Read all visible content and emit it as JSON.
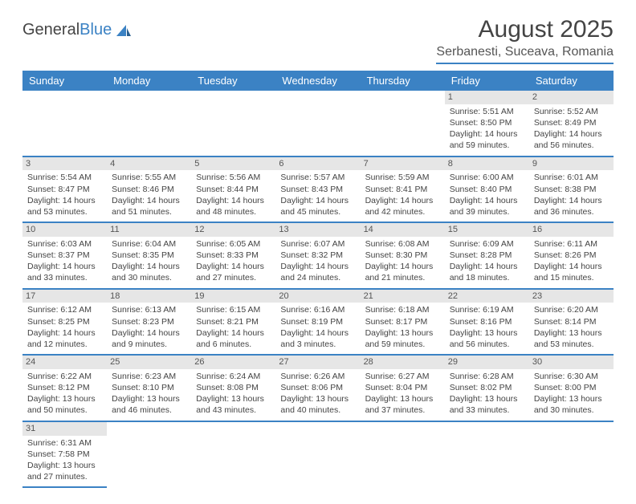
{
  "logo": {
    "text1": "General",
    "text2": "Blue"
  },
  "title": "August 2025",
  "location": "Serbanesti, Suceava, Romania",
  "header_bg": "#3b82c4",
  "days": [
    "Sunday",
    "Monday",
    "Tuesday",
    "Wednesday",
    "Thursday",
    "Friday",
    "Saturday"
  ],
  "weeks": [
    [
      null,
      null,
      null,
      null,
      null,
      {
        "n": "1",
        "sr": "Sunrise: 5:51 AM",
        "ss": "Sunset: 8:50 PM",
        "d1": "Daylight: 14 hours",
        "d2": "and 59 minutes."
      },
      {
        "n": "2",
        "sr": "Sunrise: 5:52 AM",
        "ss": "Sunset: 8:49 PM",
        "d1": "Daylight: 14 hours",
        "d2": "and 56 minutes."
      }
    ],
    [
      {
        "n": "3",
        "sr": "Sunrise: 5:54 AM",
        "ss": "Sunset: 8:47 PM",
        "d1": "Daylight: 14 hours",
        "d2": "and 53 minutes."
      },
      {
        "n": "4",
        "sr": "Sunrise: 5:55 AM",
        "ss": "Sunset: 8:46 PM",
        "d1": "Daylight: 14 hours",
        "d2": "and 51 minutes."
      },
      {
        "n": "5",
        "sr": "Sunrise: 5:56 AM",
        "ss": "Sunset: 8:44 PM",
        "d1": "Daylight: 14 hours",
        "d2": "and 48 minutes."
      },
      {
        "n": "6",
        "sr": "Sunrise: 5:57 AM",
        "ss": "Sunset: 8:43 PM",
        "d1": "Daylight: 14 hours",
        "d2": "and 45 minutes."
      },
      {
        "n": "7",
        "sr": "Sunrise: 5:59 AM",
        "ss": "Sunset: 8:41 PM",
        "d1": "Daylight: 14 hours",
        "d2": "and 42 minutes."
      },
      {
        "n": "8",
        "sr": "Sunrise: 6:00 AM",
        "ss": "Sunset: 8:40 PM",
        "d1": "Daylight: 14 hours",
        "d2": "and 39 minutes."
      },
      {
        "n": "9",
        "sr": "Sunrise: 6:01 AM",
        "ss": "Sunset: 8:38 PM",
        "d1": "Daylight: 14 hours",
        "d2": "and 36 minutes."
      }
    ],
    [
      {
        "n": "10",
        "sr": "Sunrise: 6:03 AM",
        "ss": "Sunset: 8:37 PM",
        "d1": "Daylight: 14 hours",
        "d2": "and 33 minutes."
      },
      {
        "n": "11",
        "sr": "Sunrise: 6:04 AM",
        "ss": "Sunset: 8:35 PM",
        "d1": "Daylight: 14 hours",
        "d2": "and 30 minutes."
      },
      {
        "n": "12",
        "sr": "Sunrise: 6:05 AM",
        "ss": "Sunset: 8:33 PM",
        "d1": "Daylight: 14 hours",
        "d2": "and 27 minutes."
      },
      {
        "n": "13",
        "sr": "Sunrise: 6:07 AM",
        "ss": "Sunset: 8:32 PM",
        "d1": "Daylight: 14 hours",
        "d2": "and 24 minutes."
      },
      {
        "n": "14",
        "sr": "Sunrise: 6:08 AM",
        "ss": "Sunset: 8:30 PM",
        "d1": "Daylight: 14 hours",
        "d2": "and 21 minutes."
      },
      {
        "n": "15",
        "sr": "Sunrise: 6:09 AM",
        "ss": "Sunset: 8:28 PM",
        "d1": "Daylight: 14 hours",
        "d2": "and 18 minutes."
      },
      {
        "n": "16",
        "sr": "Sunrise: 6:11 AM",
        "ss": "Sunset: 8:26 PM",
        "d1": "Daylight: 14 hours",
        "d2": "and 15 minutes."
      }
    ],
    [
      {
        "n": "17",
        "sr": "Sunrise: 6:12 AM",
        "ss": "Sunset: 8:25 PM",
        "d1": "Daylight: 14 hours",
        "d2": "and 12 minutes."
      },
      {
        "n": "18",
        "sr": "Sunrise: 6:13 AM",
        "ss": "Sunset: 8:23 PM",
        "d1": "Daylight: 14 hours",
        "d2": "and 9 minutes."
      },
      {
        "n": "19",
        "sr": "Sunrise: 6:15 AM",
        "ss": "Sunset: 8:21 PM",
        "d1": "Daylight: 14 hours",
        "d2": "and 6 minutes."
      },
      {
        "n": "20",
        "sr": "Sunrise: 6:16 AM",
        "ss": "Sunset: 8:19 PM",
        "d1": "Daylight: 14 hours",
        "d2": "and 3 minutes."
      },
      {
        "n": "21",
        "sr": "Sunrise: 6:18 AM",
        "ss": "Sunset: 8:17 PM",
        "d1": "Daylight: 13 hours",
        "d2": "and 59 minutes."
      },
      {
        "n": "22",
        "sr": "Sunrise: 6:19 AM",
        "ss": "Sunset: 8:16 PM",
        "d1": "Daylight: 13 hours",
        "d2": "and 56 minutes."
      },
      {
        "n": "23",
        "sr": "Sunrise: 6:20 AM",
        "ss": "Sunset: 8:14 PM",
        "d1": "Daylight: 13 hours",
        "d2": "and 53 minutes."
      }
    ],
    [
      {
        "n": "24",
        "sr": "Sunrise: 6:22 AM",
        "ss": "Sunset: 8:12 PM",
        "d1": "Daylight: 13 hours",
        "d2": "and 50 minutes."
      },
      {
        "n": "25",
        "sr": "Sunrise: 6:23 AM",
        "ss": "Sunset: 8:10 PM",
        "d1": "Daylight: 13 hours",
        "d2": "and 46 minutes."
      },
      {
        "n": "26",
        "sr": "Sunrise: 6:24 AM",
        "ss": "Sunset: 8:08 PM",
        "d1": "Daylight: 13 hours",
        "d2": "and 43 minutes."
      },
      {
        "n": "27",
        "sr": "Sunrise: 6:26 AM",
        "ss": "Sunset: 8:06 PM",
        "d1": "Daylight: 13 hours",
        "d2": "and 40 minutes."
      },
      {
        "n": "28",
        "sr": "Sunrise: 6:27 AM",
        "ss": "Sunset: 8:04 PM",
        "d1": "Daylight: 13 hours",
        "d2": "and 37 minutes."
      },
      {
        "n": "29",
        "sr": "Sunrise: 6:28 AM",
        "ss": "Sunset: 8:02 PM",
        "d1": "Daylight: 13 hours",
        "d2": "and 33 minutes."
      },
      {
        "n": "30",
        "sr": "Sunrise: 6:30 AM",
        "ss": "Sunset: 8:00 PM",
        "d1": "Daylight: 13 hours",
        "d2": "and 30 minutes."
      }
    ],
    [
      {
        "n": "31",
        "sr": "Sunrise: 6:31 AM",
        "ss": "Sunset: 7:58 PM",
        "d1": "Daylight: 13 hours",
        "d2": "and 27 minutes."
      },
      null,
      null,
      null,
      null,
      null,
      null
    ]
  ]
}
